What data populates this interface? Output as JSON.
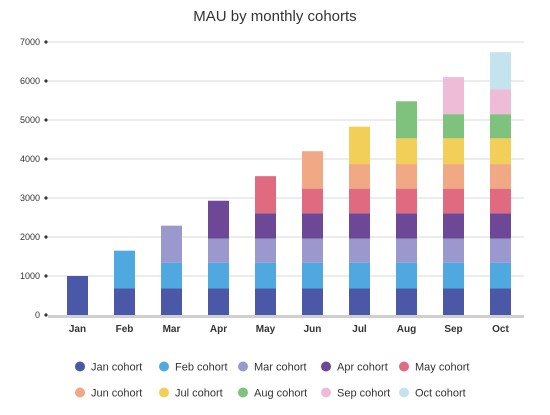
{
  "chart_data": {
    "type": "bar",
    "stacked": true,
    "title": "MAU by monthly cohorts",
    "xlabel": "",
    "ylabel": "",
    "ylim": [
      0,
      7000
    ],
    "yticks": [
      0,
      1000,
      2000,
      3000,
      4000,
      5000,
      6000,
      7000
    ],
    "grid": true,
    "legend_position": "bottom",
    "categories": [
      "Jan",
      "Feb",
      "Mar",
      "Apr",
      "May",
      "Jun",
      "Jul",
      "Aug",
      "Sep",
      "Oct"
    ],
    "series": [
      {
        "name": "Jan cohort",
        "color": "#4a58a7",
        "values": [
          1000,
          680,
          680,
          680,
          680,
          680,
          680,
          680,
          680,
          680
        ]
      },
      {
        "name": "Feb cohort",
        "color": "#4fa8e0",
        "values": [
          0,
          970,
          660,
          660,
          660,
          660,
          660,
          660,
          660,
          660
        ]
      },
      {
        "name": "Mar cohort",
        "color": "#9a98cc",
        "values": [
          0,
          0,
          950,
          620,
          620,
          620,
          620,
          620,
          620,
          620
        ]
      },
      {
        "name": "Apr cohort",
        "color": "#6d4896",
        "values": [
          0,
          0,
          0,
          970,
          650,
          650,
          650,
          650,
          650,
          650
        ]
      },
      {
        "name": "May cohort",
        "color": "#e06b80",
        "values": [
          0,
          0,
          0,
          0,
          950,
          630,
          630,
          630,
          630,
          630
        ]
      },
      {
        "name": "Jun cohort",
        "color": "#f0a885",
        "values": [
          0,
          0,
          0,
          0,
          0,
          960,
          630,
          630,
          630,
          630
        ]
      },
      {
        "name": "Jul cohort",
        "color": "#f2cf58",
        "values": [
          0,
          0,
          0,
          0,
          0,
          0,
          960,
          660,
          660,
          660
        ]
      },
      {
        "name": "Aug cohort",
        "color": "#7fc27e",
        "values": [
          0,
          0,
          0,
          0,
          0,
          0,
          0,
          950,
          620,
          620
        ]
      },
      {
        "name": "Sep cohort",
        "color": "#efbcd8",
        "values": [
          0,
          0,
          0,
          0,
          0,
          0,
          0,
          0,
          950,
          640
        ]
      },
      {
        "name": "Oct cohort",
        "color": "#c5e3ee",
        "values": [
          0,
          0,
          0,
          0,
          0,
          0,
          0,
          0,
          0,
          950
        ]
      }
    ]
  }
}
